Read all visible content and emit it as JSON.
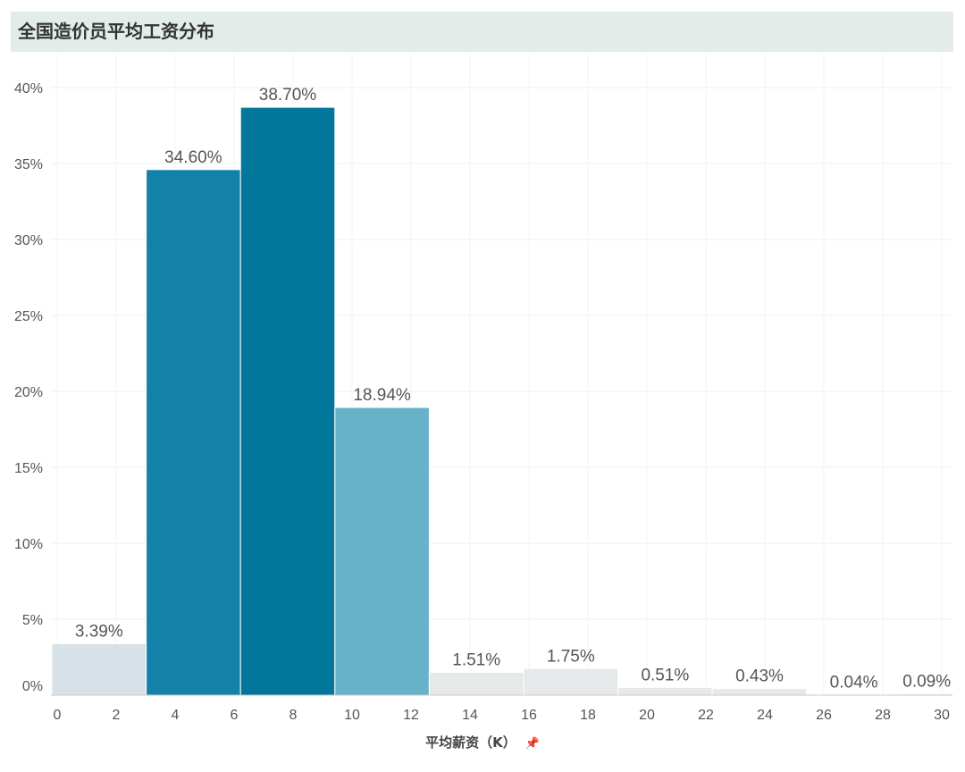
{
  "title": "全国造价员平均工资分布",
  "chart_data": {
    "type": "bar",
    "subtype": "histogram",
    "title": "全国造价员平均工资分布",
    "xlabel": "平均薪资（K）",
    "ylabel": "",
    "x_ticks": [
      0,
      2,
      4,
      6,
      8,
      10,
      12,
      14,
      16,
      18,
      20,
      22,
      24,
      26,
      28,
      30
    ],
    "y_ticks": [
      "0%",
      "5%",
      "10%",
      "15%",
      "20%",
      "25%",
      "30%",
      "35%",
      "40%"
    ],
    "ylim": [
      0,
      40
    ],
    "xlim": [
      0,
      30
    ],
    "grid": true,
    "bins": [
      {
        "start": 0,
        "end": 3.2,
        "value": 3.39,
        "label": "3.39%",
        "color": "#d6e2e8"
      },
      {
        "start": 3.2,
        "end": 6.4,
        "value": 34.6,
        "label": "34.60%",
        "color": "#1482a8"
      },
      {
        "start": 6.4,
        "end": 9.6,
        "value": 38.7,
        "label": "38.70%",
        "color": "#03769c"
      },
      {
        "start": 9.6,
        "end": 12.8,
        "value": 18.94,
        "label": "18.94%",
        "color": "#67b2c9"
      },
      {
        "start": 12.8,
        "end": 16.0,
        "value": 1.51,
        "label": "1.51%",
        "color": "#e6e9ea"
      },
      {
        "start": 16.0,
        "end": 19.2,
        "value": 1.75,
        "label": "1.75%",
        "color": "#e6e9ea"
      },
      {
        "start": 19.2,
        "end": 22.4,
        "value": 0.51,
        "label": "0.51%",
        "color": "#e6e9ea"
      },
      {
        "start": 22.4,
        "end": 25.6,
        "value": 0.43,
        "label": "0.43%",
        "color": "#e6e9ea"
      },
      {
        "start": 25.6,
        "end": 28.8,
        "value": 0.04,
        "label": "0.04%",
        "color": "#e6e9ea"
      },
      {
        "start": 28.8,
        "end": 32.0,
        "value": 0.09,
        "label": "0.09%",
        "color": "#e6e9ea"
      }
    ]
  },
  "icons": {
    "axis_pin": "pin-icon"
  }
}
